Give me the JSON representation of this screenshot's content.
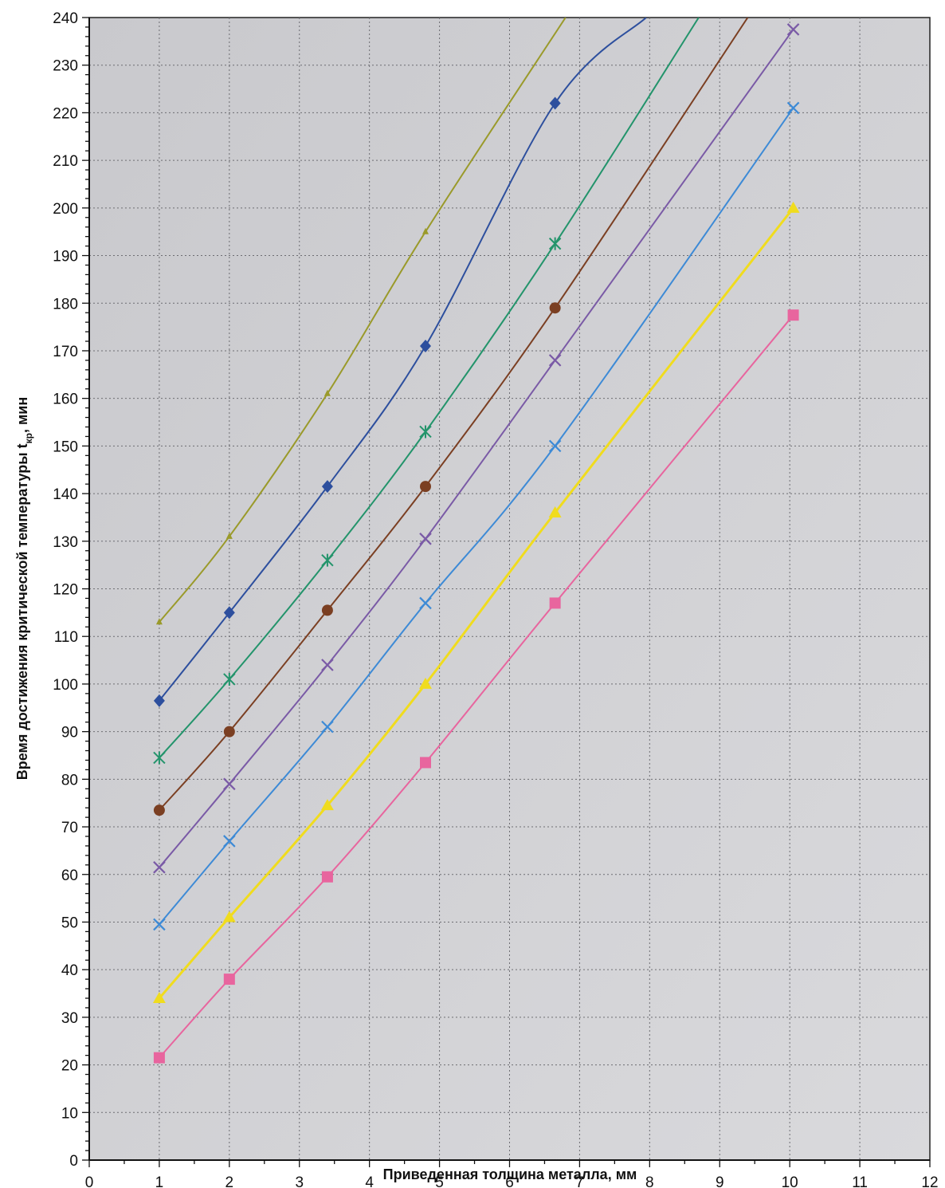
{
  "chart_data": {
    "type": "line",
    "title": "",
    "xlabel": "Приведенная толщина металла, мм",
    "ylabel_main": "Время достижения критической температуры t",
    "ylabel_sub": "кр",
    "ylabel_tail": ", мин",
    "xlim": [
      0,
      12
    ],
    "ylim": [
      0,
      240
    ],
    "x_ticks": [
      "0",
      "1",
      "2",
      "3",
      "4",
      "5",
      "6",
      "7",
      "8",
      "9",
      "10",
      "11",
      "12"
    ],
    "y_ticks": [
      "0",
      "10",
      "20",
      "30",
      "40",
      "50",
      "60",
      "70",
      "80",
      "90",
      "100",
      "110",
      "120",
      "130",
      "140",
      "150",
      "160",
      "170",
      "180",
      "190",
      "200",
      "210",
      "220",
      "230",
      "240"
    ],
    "x_minor_step": 0.5,
    "y_minor_step": 2,
    "grid": true,
    "legend": "none",
    "series": [
      {
        "color": "#9a9a2a",
        "marker": "triangle-small",
        "points": [
          [
            1.0,
            113
          ],
          [
            2.0,
            131
          ],
          [
            3.4,
            161
          ],
          [
            4.8,
            195
          ],
          [
            6.8,
            240
          ]
        ]
      },
      {
        "color": "#2d4f9e",
        "marker": "diamond",
        "points": [
          [
            1.0,
            96.5
          ],
          [
            2.0,
            115
          ],
          [
            3.4,
            141.5
          ],
          [
            4.8,
            171
          ],
          [
            6.65,
            222
          ],
          [
            7.95,
            240
          ]
        ]
      },
      {
        "color": "#23946b",
        "marker": "star",
        "points": [
          [
            1.0,
            84.5
          ],
          [
            2.0,
            101
          ],
          [
            3.4,
            126
          ],
          [
            4.8,
            153
          ],
          [
            6.65,
            192.5
          ],
          [
            8.7,
            240
          ]
        ]
      },
      {
        "color": "#7b3f22",
        "marker": "circle",
        "points": [
          [
            1.0,
            73.5
          ],
          [
            2.0,
            90
          ],
          [
            3.4,
            115.5
          ],
          [
            4.8,
            141.5
          ],
          [
            6.65,
            179
          ],
          [
            9.4,
            240
          ]
        ]
      },
      {
        "color": "#7a5aa6",
        "marker": "x",
        "points": [
          [
            1.0,
            61.5
          ],
          [
            2.0,
            79
          ],
          [
            3.4,
            104
          ],
          [
            4.8,
            130.5
          ],
          [
            6.65,
            168
          ],
          [
            10.05,
            237.5
          ]
        ]
      },
      {
        "color": "#3d8ad6",
        "marker": "x",
        "points": [
          [
            1.0,
            49.5
          ],
          [
            2.0,
            67
          ],
          [
            3.4,
            91
          ],
          [
            4.8,
            117
          ],
          [
            6.65,
            150
          ],
          [
            10.05,
            221
          ]
        ]
      },
      {
        "color": "#f0dc1e",
        "marker": "triangle",
        "points": [
          [
            1.0,
            34
          ],
          [
            2.0,
            51
          ],
          [
            3.4,
            74.5
          ],
          [
            4.8,
            100
          ],
          [
            6.65,
            136
          ],
          [
            10.05,
            200
          ]
        ]
      },
      {
        "color": "#e8659e",
        "marker": "square",
        "points": [
          [
            1.0,
            21.5
          ],
          [
            2.0,
            38
          ],
          [
            3.4,
            59.5
          ],
          [
            4.8,
            83.5
          ],
          [
            6.65,
            117
          ],
          [
            10.05,
            177.5
          ]
        ]
      }
    ]
  }
}
